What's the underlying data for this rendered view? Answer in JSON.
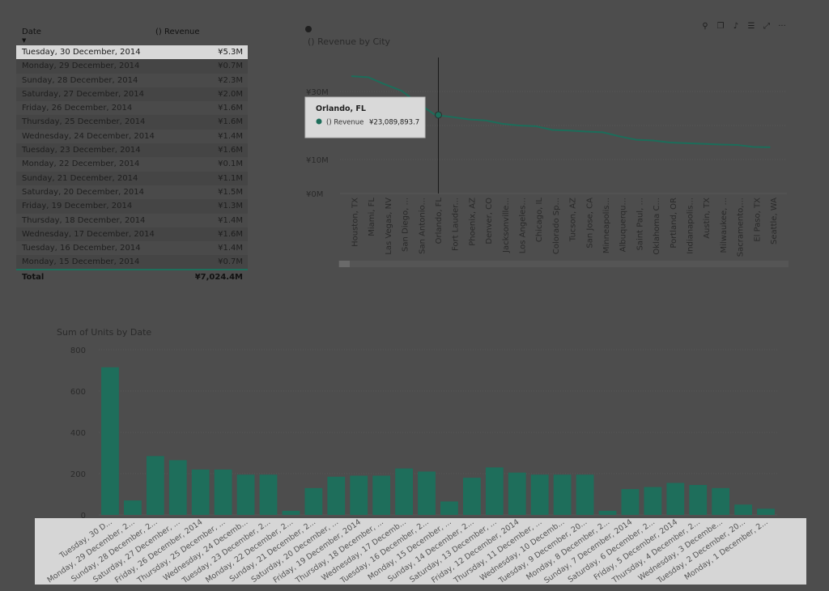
{
  "table": {
    "col_date": "Date",
    "col_revenue": "() Revenue",
    "rows": [
      {
        "date": "Tuesday, 30 December, 2014",
        "revenue": "¥5.3M"
      },
      {
        "date": "Monday, 29 December, 2014",
        "revenue": "¥0.7M"
      },
      {
        "date": "Sunday, 28 December, 2014",
        "revenue": "¥2.3M"
      },
      {
        "date": "Saturday, 27 December, 2014",
        "revenue": "¥2.0M"
      },
      {
        "date": "Friday, 26 December, 2014",
        "revenue": "¥1.6M"
      },
      {
        "date": "Thursday, 25 December, 2014",
        "revenue": "¥1.6M"
      },
      {
        "date": "Wednesday, 24 December, 2014",
        "revenue": "¥1.4M"
      },
      {
        "date": "Tuesday, 23 December, 2014",
        "revenue": "¥1.6M"
      },
      {
        "date": "Monday, 22 December, 2014",
        "revenue": "¥0.1M"
      },
      {
        "date": "Sunday, 21 December, 2014",
        "revenue": "¥1.1M"
      },
      {
        "date": "Saturday, 20 December, 2014",
        "revenue": "¥1.5M"
      },
      {
        "date": "Friday, 19 December, 2014",
        "revenue": "¥1.3M"
      },
      {
        "date": "Thursday, 18 December, 2014",
        "revenue": "¥1.4M"
      },
      {
        "date": "Wednesday, 17 December, 2014",
        "revenue": "¥1.6M"
      },
      {
        "date": "Tuesday, 16 December, 2014",
        "revenue": "¥1.4M"
      },
      {
        "date": "Monday, 15 December, 2014",
        "revenue": "¥0.7M"
      }
    ],
    "total_label": "Total",
    "total_value": "¥7,024.4M"
  },
  "toolbar": {
    "icons": [
      "pin-icon",
      "copy-icon",
      "bell-icon",
      "filter-icon",
      "focus-mode-icon",
      "more-options-icon"
    ],
    "glyphs": [
      "⚲",
      "❐",
      "♪",
      "☰",
      "⤢",
      "···"
    ]
  },
  "colors": {
    "accent": "#1e6e5b",
    "line": "#1c6d5a",
    "tooltip_bg": "#d9d9d9",
    "text_dim": "#2a2a2a",
    "gridline": "#585858"
  },
  "chart_data": [
    {
      "type": "line",
      "title": "() Revenue by City",
      "categories": [
        "Houston, TX",
        "Miami, FL",
        "Las Vegas, NV",
        "San Diego, ...",
        "San Antonio...",
        "Orlando, FL",
        "Fort Lauder...",
        "Phoenix, AZ",
        "Denver, CO",
        "Jacksonville...",
        "Los Angeles...",
        "Chicago, IL",
        "Colorado Sp...",
        "Tucson, AZ",
        "San Jose, CA",
        "Minneapolis...",
        "Albuquerqu...",
        "Saint Paul, ...",
        "Oklahoma C...",
        "Portland, OR",
        "Indianapolis...",
        "Austin, TX",
        "Milwaukee, ...",
        "Sacramento,...",
        "El Paso, TX",
        "Seattle, WA"
      ],
      "series": [
        {
          "name": "() Revenue",
          "values": [
            34.5,
            34.2,
            32.1,
            30.2,
            26.5,
            23.1,
            22.5,
            21.8,
            21.5,
            20.5,
            20.0,
            19.8,
            18.7,
            18.5,
            18.2,
            18.0,
            16.8,
            15.8,
            15.6,
            15.0,
            14.8,
            14.6,
            14.4,
            14.3,
            13.7,
            13.6
          ]
        }
      ],
      "y_ticks": [
        "¥0M",
        "¥10M",
        "¥20M",
        "¥30M"
      ],
      "tick_values": [
        0,
        10,
        20,
        30
      ],
      "ylim": [
        0,
        40
      ],
      "grid": true,
      "tooltip": {
        "title": "Orlando, FL",
        "series": "() Revenue",
        "value": "¥23,089,893.7",
        "index": 5
      }
    },
    {
      "type": "bar",
      "title": "Sum of Units by Date",
      "categories": [
        "Tuesday, 30 D...",
        "Monday, 29 December, 2...",
        "Sunday, 28 December, 2...",
        "Saturday, 27 December, ...",
        "Friday, 26 December, 2014",
        "Thursday, 25 December, ...",
        "Wednesday, 24 Decemb...",
        "Tuesday, 23 December, 2...",
        "Monday, 22 December, 2...",
        "Sunday, 21 December, 2...",
        "Saturday, 20 December, ...",
        "Friday, 19 December, 2014",
        "Thursday, 18 December, ...",
        "Wednesday, 17 Decemb...",
        "Tuesday, 16 December, 2...",
        "Monday, 15 December, ...",
        "Sunday, 14 December, 2...",
        "Saturday, 13 December, ...",
        "Friday, 12 December, 2014",
        "Thursday, 11 December, ...",
        "Wednesday, 10 Decemb...",
        "Tuesday, 9 December, 20...",
        "Monday, 8 December, 2...",
        "Sunday, 7 December, 2014",
        "Saturday, 6 December, 2...",
        "Friday, 5 December, 2014",
        "Thursday, 4 December, 2...",
        "Wednesday, 3 Decembe...",
        "Tuesday, 2 December, 20...",
        "Monday, 1 December, 2..."
      ],
      "values": [
        715,
        70,
        285,
        265,
        220,
        220,
        195,
        195,
        20,
        130,
        185,
        190,
        190,
        225,
        210,
        65,
        180,
        230,
        205,
        195,
        195,
        195,
        20,
        125,
        135,
        155,
        145,
        130,
        50,
        30
      ],
      "y_ticks": [
        "0",
        "200",
        "400",
        "600",
        "800"
      ],
      "tick_values": [
        0,
        200,
        400,
        600,
        800
      ],
      "ylim": [
        0,
        800
      ],
      "grid": true
    }
  ]
}
